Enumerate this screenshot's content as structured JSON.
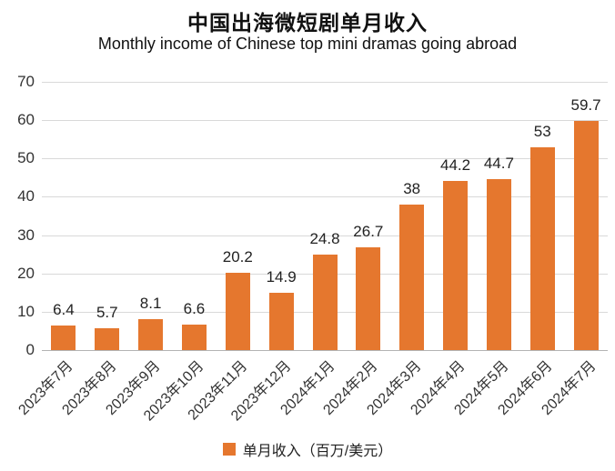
{
  "chart_data": {
    "type": "bar",
    "title": "中国出海微短剧单月收入",
    "subtitle": "Monthly income of Chinese top mini dramas going abroad",
    "categories": [
      "2023年7月",
      "2023年8月",
      "2023年9月",
      "2023年10月",
      "2023年11月",
      "2023年12月",
      "2024年1月",
      "2024年2月",
      "2024年3月",
      "2024年4月",
      "2024年5月",
      "2024年6月",
      "2024年7月"
    ],
    "values": [
      6.4,
      5.7,
      8.1,
      6.6,
      20.2,
      14.9,
      24.8,
      26.7,
      38,
      44.2,
      44.7,
      53,
      59.7
    ],
    "ylim": [
      0,
      70
    ],
    "yticks": [
      0,
      10,
      20,
      30,
      40,
      50,
      60,
      70
    ],
    "grid": true,
    "legend_position": "bottom",
    "legend_label": "单月收入（百万/美元）",
    "bar_color": "#E5772E",
    "xlabel": "",
    "ylabel": ""
  }
}
